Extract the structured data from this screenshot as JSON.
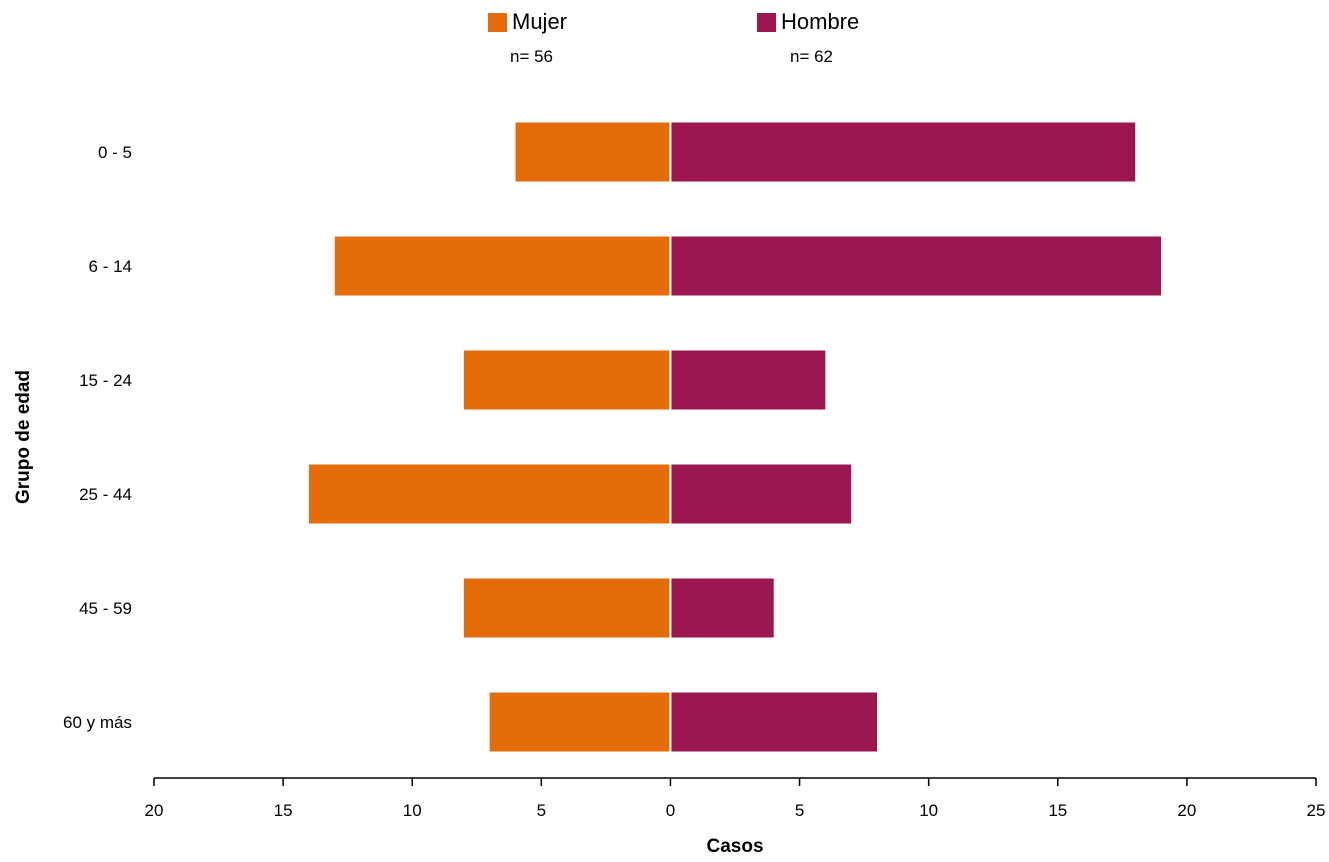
{
  "chart_data": {
    "type": "bar",
    "orientation": "horizontal",
    "layout": "population-pyramid",
    "categories": [
      "0 - 5",
      "6 - 14",
      "15 - 24",
      "25 - 44",
      "45 - 59",
      "60 y más"
    ],
    "series": [
      {
        "name": "Mujer",
        "n_label": "n= 56",
        "color": "#E46C0A",
        "side": "left",
        "values": [
          6,
          13,
          8,
          14,
          8,
          7
        ]
      },
      {
        "name": "Hombre",
        "n_label": "n= 62",
        "color": "#9A1750",
        "side": "right",
        "values": [
          18,
          19,
          6,
          7,
          4,
          8
        ]
      }
    ],
    "xlabel": "Casos",
    "ylabel": "Grupo de edad",
    "xlim": [
      -20,
      25
    ],
    "x_ticks": [
      -20,
      -15,
      -10,
      -5,
      0,
      5,
      10,
      15,
      20,
      25
    ],
    "x_tick_labels": [
      "20",
      "15",
      "10",
      "5",
      "0",
      "5",
      "10",
      "15",
      "20",
      "25"
    ],
    "grid": false,
    "legend_position": "top-center"
  }
}
